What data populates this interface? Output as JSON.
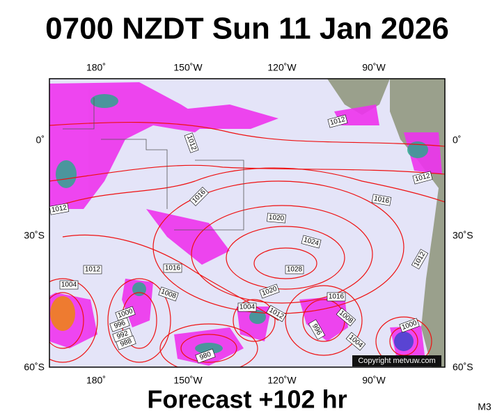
{
  "title": "0700 NZDT Sun 11 Jan 2026",
  "footer": "Forecast +102 hr",
  "model": "M3",
  "copyright": "Copyright metvuw.com",
  "longitude_labels": [
    "180˚",
    "150˚W",
    "120˚W",
    "90˚W"
  ],
  "latitude_labels": [
    "0˚",
    "30˚S",
    "60˚S"
  ],
  "isobar_labels": [
    1012,
    1012,
    1012,
    1016,
    1016,
    1012,
    1020,
    1024,
    1012,
    1016,
    1028,
    1012,
    1004,
    1008,
    1020,
    1004,
    1012,
    1016,
    1000,
    996,
    992,
    988,
    1008,
    996,
    1004,
    1000,
    980
  ]
}
